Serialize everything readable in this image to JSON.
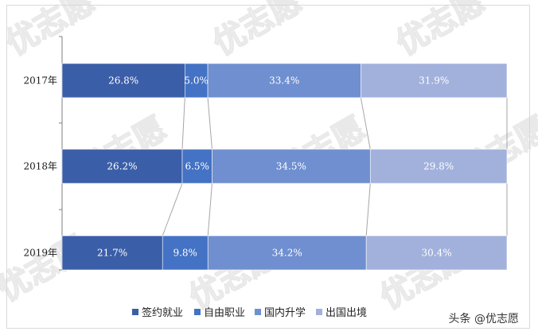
{
  "chart_data": {
    "type": "bar",
    "orientation": "horizontal",
    "stacked": "percent",
    "categories": [
      "2017年",
      "2018年",
      "2019年"
    ],
    "series": [
      {
        "name": "签约就业",
        "values": [
          26.8,
          26.2,
          21.7
        ],
        "labels": [
          "26.8%",
          "26.2%",
          "21.7%"
        ],
        "color": "#3b5ea8"
      },
      {
        "name": "自由职业",
        "values": [
          5.0,
          6.5,
          9.8
        ],
        "labels": [
          "5.0%",
          "6.5%",
          "9.8%"
        ],
        "color": "#4472c4"
      },
      {
        "name": "国内升学",
        "values": [
          33.4,
          34.5,
          34.2
        ],
        "labels": [
          "33.4%",
          "34.5%",
          "34.2%"
        ],
        "color": "#6f8fd0"
      },
      {
        "name": "出国出境",
        "values": [
          31.9,
          29.8,
          30.4
        ],
        "labels": [
          "31.9%",
          "29.8%",
          "30.4%"
        ],
        "color": "#a2b1dc"
      }
    ],
    "series_lines": true,
    "legend_position": "bottom",
    "grid": false
  },
  "source": "头条 @优志愿",
  "watermark": "优志愿"
}
